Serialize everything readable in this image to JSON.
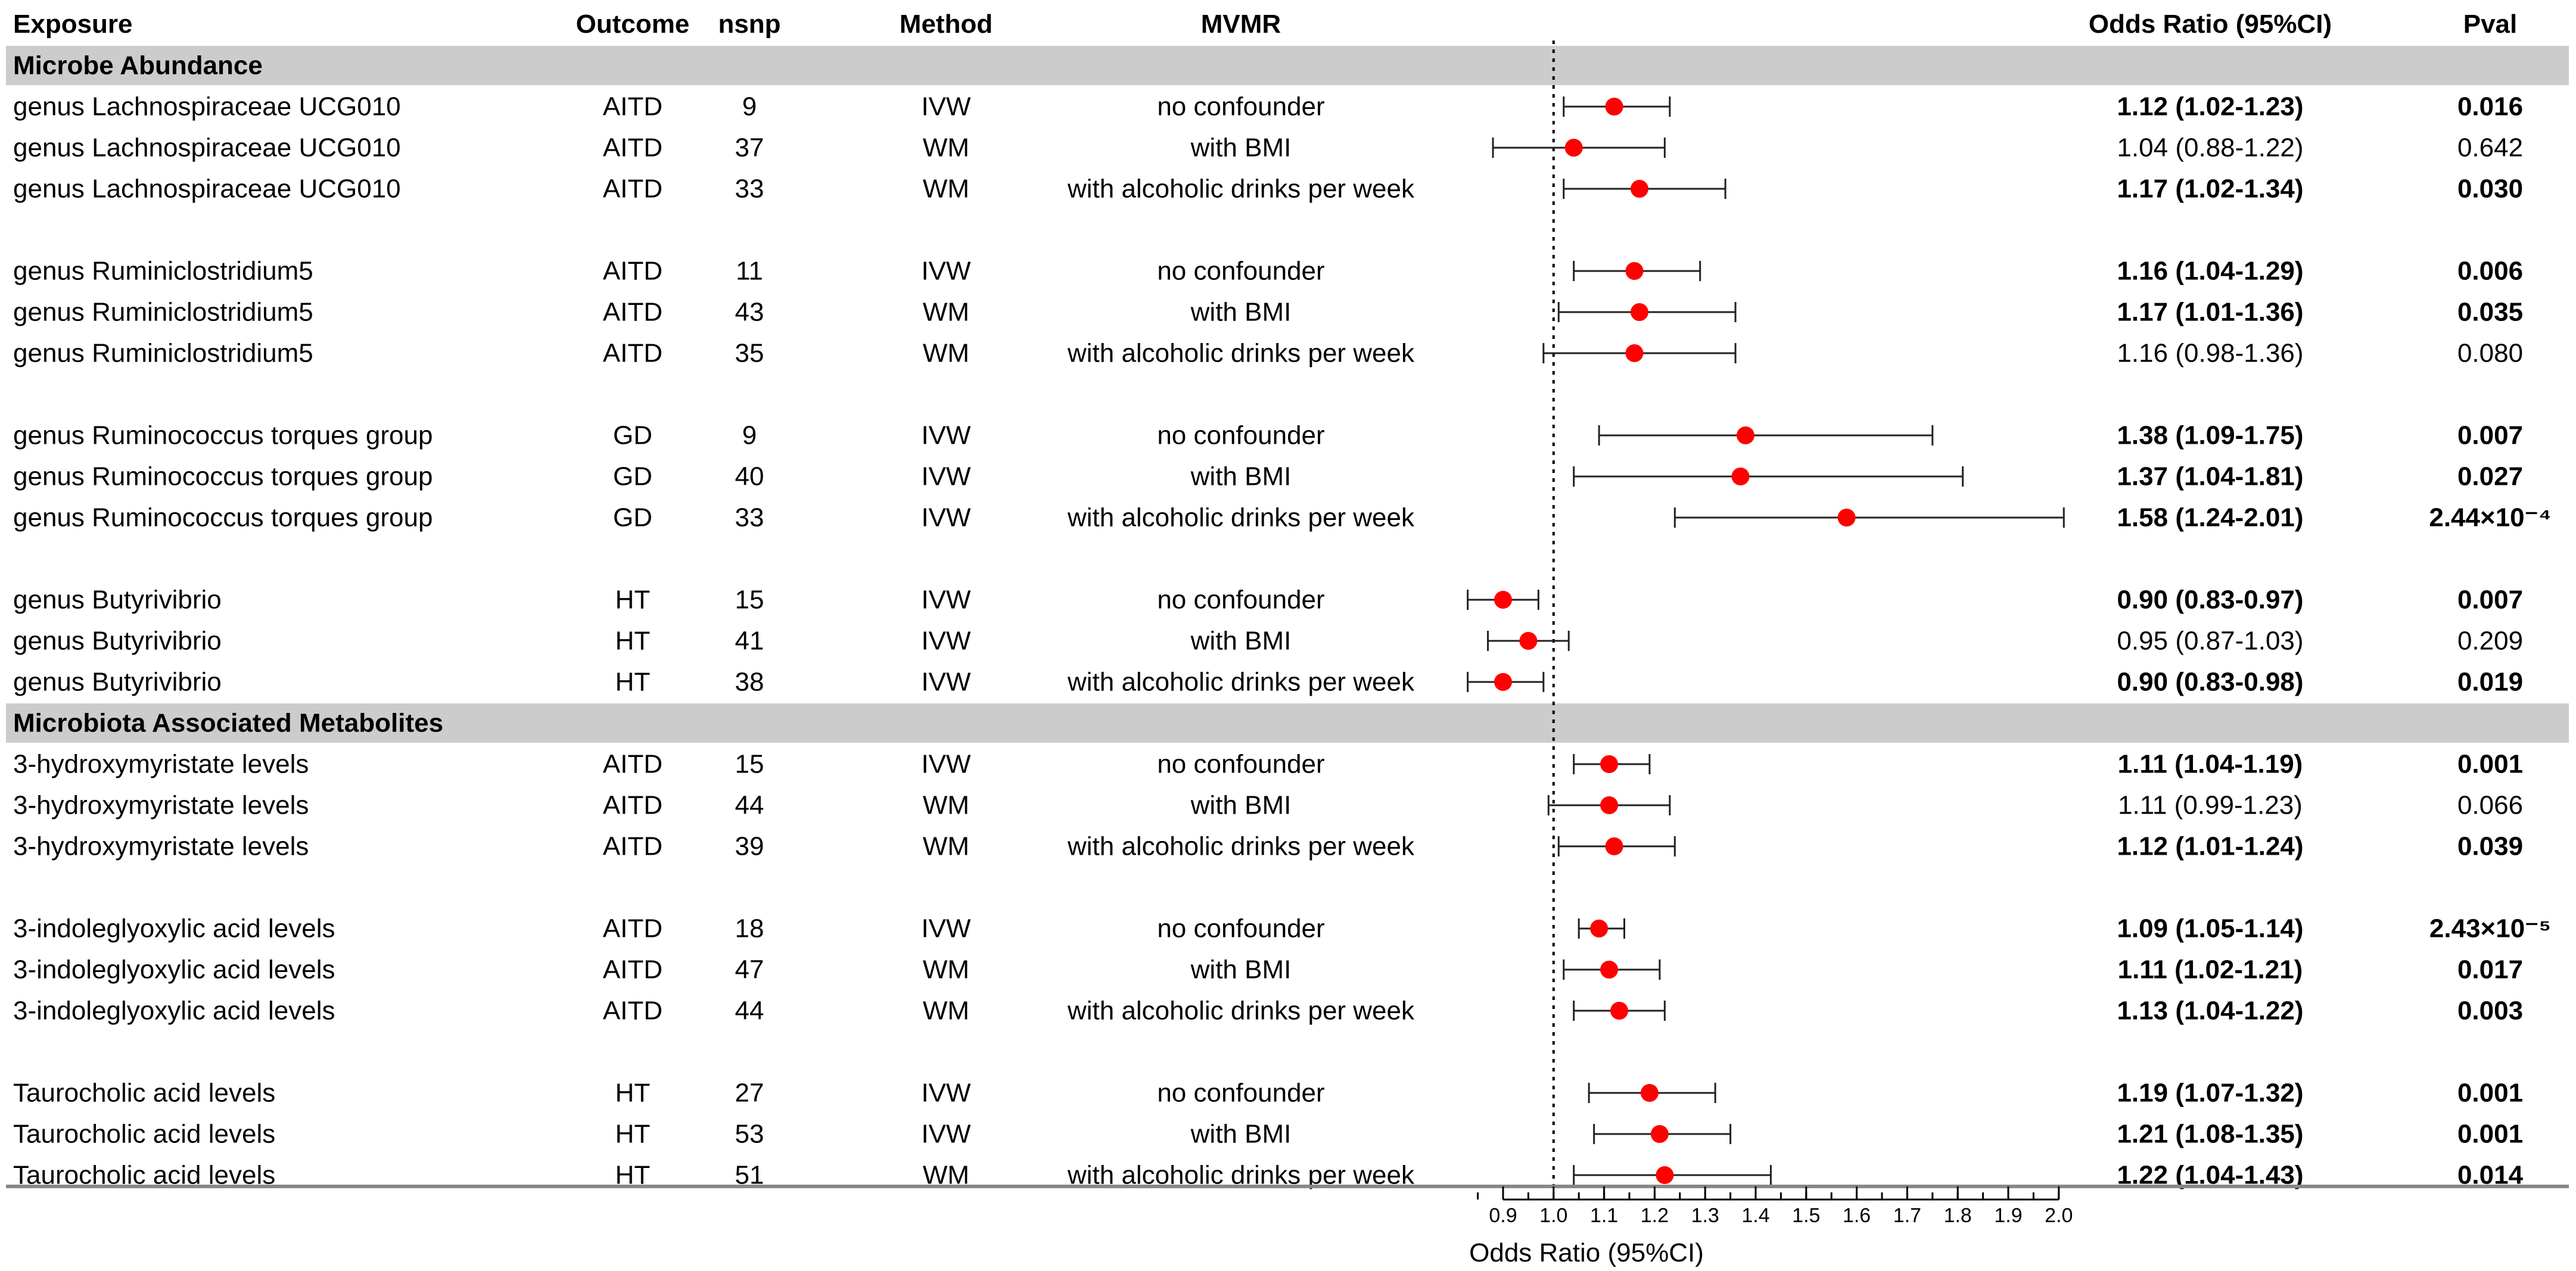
{
  "chart_data": {
    "type": "forest",
    "headers": {
      "exposure": "Exposure",
      "outcome": "Outcome",
      "nsnp": "nsnp",
      "method": "Method",
      "mvmr": "MVMR",
      "or": "Odds Ratio (95%CI)",
      "pval": "Pval"
    },
    "xlabel": "Odds Ratio (95%CI)",
    "xlim": [
      0.8,
      2.0
    ],
    "xticks": [
      0.9,
      1.0,
      1.1,
      1.2,
      1.3,
      1.4,
      1.5,
      1.6,
      1.7,
      1.8,
      1.9,
      2.0
    ],
    "xtick_labels": [
      "0.9",
      "1.0",
      "1.1",
      "1.2",
      "1.3",
      "1.4",
      "1.5",
      "1.6",
      "1.7",
      "1.8",
      "1.9",
      "2.0"
    ],
    "reference_line": 1.0,
    "colors": {
      "point": "#ff0000",
      "section_bg": "#cccccc",
      "line": "#222222"
    },
    "rows": [
      {
        "type": "section",
        "label": "Microbe Abundance"
      },
      {
        "type": "data",
        "exposure": "genus Lachnospiraceae UCG010",
        "outcome": "AITD",
        "nsnp": "9",
        "method": "IVW",
        "mvmr": "no confounder",
        "or": 1.12,
        "lo": 1.02,
        "hi": 1.23,
        "or_text": "1.12 (1.02-1.23)",
        "p": "0.016",
        "bold": true
      },
      {
        "type": "data",
        "exposure": "genus Lachnospiraceae UCG010",
        "outcome": "AITD",
        "nsnp": "37",
        "method": "WM",
        "mvmr": "with BMI",
        "or": 1.04,
        "lo": 0.88,
        "hi": 1.22,
        "or_text": "1.04 (0.88-1.22)",
        "p": "0.642",
        "bold": false
      },
      {
        "type": "data",
        "exposure": "genus Lachnospiraceae UCG010",
        "outcome": "AITD",
        "nsnp": "33",
        "method": "WM",
        "mvmr": "with alcoholic drinks per week",
        "or": 1.17,
        "lo": 1.02,
        "hi": 1.34,
        "or_text": "1.17 (1.02-1.34)",
        "p": "0.030",
        "bold": true
      },
      {
        "type": "blank"
      },
      {
        "type": "data",
        "exposure": "genus Ruminiclostridium5",
        "outcome": "AITD",
        "nsnp": "11",
        "method": "IVW",
        "mvmr": "no confounder",
        "or": 1.16,
        "lo": 1.04,
        "hi": 1.29,
        "or_text": "1.16 (1.04-1.29)",
        "p": "0.006",
        "bold": true
      },
      {
        "type": "data",
        "exposure": "genus Ruminiclostridium5",
        "outcome": "AITD",
        "nsnp": "43",
        "method": "WM",
        "mvmr": "with BMI",
        "or": 1.17,
        "lo": 1.01,
        "hi": 1.36,
        "or_text": "1.17 (1.01-1.36)",
        "p": "0.035",
        "bold": true
      },
      {
        "type": "data",
        "exposure": "genus Ruminiclostridium5",
        "outcome": "AITD",
        "nsnp": "35",
        "method": "WM",
        "mvmr": "with alcoholic drinks per week",
        "or": 1.16,
        "lo": 0.98,
        "hi": 1.36,
        "or_text": "1.16 (0.98-1.36)",
        "p": "0.080",
        "bold": false
      },
      {
        "type": "blank"
      },
      {
        "type": "data",
        "exposure": "genus Ruminococcus torques group",
        "outcome": "GD",
        "nsnp": "9",
        "method": "IVW",
        "mvmr": "no confounder",
        "or": 1.38,
        "lo": 1.09,
        "hi": 1.75,
        "or_text": "1.38 (1.09-1.75)",
        "p": "0.007",
        "bold": true
      },
      {
        "type": "data",
        "exposure": "genus Ruminococcus torques group",
        "outcome": "GD",
        "nsnp": "40",
        "method": "IVW",
        "mvmr": "with BMI",
        "or": 1.37,
        "lo": 1.04,
        "hi": 1.81,
        "or_text": "1.37 (1.04-1.81)",
        "p": "0.027",
        "bold": true
      },
      {
        "type": "data",
        "exposure": "genus Ruminococcus torques group",
        "outcome": "GD",
        "nsnp": "33",
        "method": "IVW",
        "mvmr": "with alcoholic drinks per week",
        "or": 1.58,
        "lo": 1.24,
        "hi": 2.01,
        "or_text": "1.58 (1.24-2.01)",
        "p": "2.44×10⁻⁴",
        "bold": true
      },
      {
        "type": "blank"
      },
      {
        "type": "data",
        "exposure": "genus Butyrivibrio",
        "outcome": "HT",
        "nsnp": "15",
        "method": "IVW",
        "mvmr": "no confounder",
        "or": 0.9,
        "lo": 0.83,
        "hi": 0.97,
        "or_text": "0.90 (0.83-0.97)",
        "p": "0.007",
        "bold": true
      },
      {
        "type": "data",
        "exposure": "genus Butyrivibrio",
        "outcome": "HT",
        "nsnp": "41",
        "method": "IVW",
        "mvmr": "with BMI",
        "or": 0.95,
        "lo": 0.87,
        "hi": 1.03,
        "or_text": "0.95 (0.87-1.03)",
        "p": "0.209",
        "bold": false
      },
      {
        "type": "data",
        "exposure": "genus Butyrivibrio",
        "outcome": "HT",
        "nsnp": "38",
        "method": "IVW",
        "mvmr": "with alcoholic drinks per week",
        "or": 0.9,
        "lo": 0.83,
        "hi": 0.98,
        "or_text": "0.90 (0.83-0.98)",
        "p": "0.019",
        "bold": true
      },
      {
        "type": "section",
        "label": "Microbiota Associated Metabolites"
      },
      {
        "type": "data",
        "exposure": "3-hydroxymyristate levels",
        "outcome": "AITD",
        "nsnp": "15",
        "method": "IVW",
        "mvmr": "no confounder",
        "or": 1.11,
        "lo": 1.04,
        "hi": 1.19,
        "or_text": "1.11 (1.04-1.19)",
        "p": "0.001",
        "bold": true
      },
      {
        "type": "data",
        "exposure": "3-hydroxymyristate levels",
        "outcome": "AITD",
        "nsnp": "44",
        "method": "WM",
        "mvmr": "with BMI",
        "or": 1.11,
        "lo": 0.99,
        "hi": 1.23,
        "or_text": "1.11 (0.99-1.23)",
        "p": "0.066",
        "bold": false
      },
      {
        "type": "data",
        "exposure": "3-hydroxymyristate levels",
        "outcome": "AITD",
        "nsnp": "39",
        "method": "WM",
        "mvmr": "with alcoholic drinks per week",
        "or": 1.12,
        "lo": 1.01,
        "hi": 1.24,
        "or_text": "1.12 (1.01-1.24)",
        "p": "0.039",
        "bold": true
      },
      {
        "type": "blank"
      },
      {
        "type": "data",
        "exposure": "3-indoleglyoxylic acid levels",
        "outcome": "AITD",
        "nsnp": "18",
        "method": "IVW",
        "mvmr": "no confounder",
        "or": 1.09,
        "lo": 1.05,
        "hi": 1.14,
        "or_text": "1.09 (1.05-1.14)",
        "p": "2.43×10⁻⁵",
        "bold": true
      },
      {
        "type": "data",
        "exposure": "3-indoleglyoxylic acid levels",
        "outcome": "AITD",
        "nsnp": "47",
        "method": "WM",
        "mvmr": "with BMI",
        "or": 1.11,
        "lo": 1.02,
        "hi": 1.21,
        "or_text": "1.11 (1.02-1.21)",
        "p": "0.017",
        "bold": true
      },
      {
        "type": "data",
        "exposure": "3-indoleglyoxylic acid levels",
        "outcome": "AITD",
        "nsnp": "44",
        "method": "WM",
        "mvmr": "with alcoholic drinks per week",
        "or": 1.13,
        "lo": 1.04,
        "hi": 1.22,
        "or_text": "1.13 (1.04-1.22)",
        "p": "0.003",
        "bold": true
      },
      {
        "type": "blank"
      },
      {
        "type": "data",
        "exposure": "Taurocholic acid levels",
        "outcome": "HT",
        "nsnp": "27",
        "method": "IVW",
        "mvmr": "no confounder",
        "or": 1.19,
        "lo": 1.07,
        "hi": 1.32,
        "or_text": "1.19 (1.07-1.32)",
        "p": "0.001",
        "bold": true
      },
      {
        "type": "data",
        "exposure": "Taurocholic acid levels",
        "outcome": "HT",
        "nsnp": "53",
        "method": "IVW",
        "mvmr": "with BMI",
        "or": 1.21,
        "lo": 1.08,
        "hi": 1.35,
        "or_text": "1.21 (1.08-1.35)",
        "p": "0.001",
        "bold": true
      },
      {
        "type": "data",
        "exposure": "Taurocholic acid levels",
        "outcome": "HT",
        "nsnp": "51",
        "method": "WM",
        "mvmr": "with alcoholic drinks per week",
        "or": 1.22,
        "lo": 1.04,
        "hi": 1.43,
        "or_text": "1.22 (1.04-1.43)",
        "p": "0.014",
        "bold": true
      }
    ]
  }
}
